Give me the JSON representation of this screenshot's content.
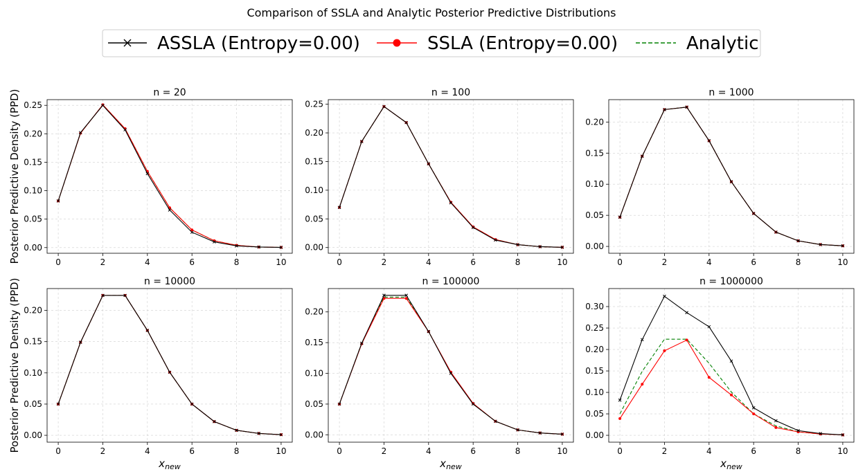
{
  "title": "Comparison of SSLA and Analytic Posterior Predictive Distributions",
  "legend": [
    {
      "label": "ASSLA (Entropy=0.00)",
      "color": "#000000",
      "marker": "x",
      "dash": "solid"
    },
    {
      "label": "SSLA (Entropy=0.00)",
      "color": "#ff0000",
      "marker": "dot",
      "dash": "solid"
    },
    {
      "label": "Analytic",
      "color": "#008000",
      "marker": "none",
      "dash": "dashed"
    }
  ],
  "ylabel": "Posterior Predictive Density (PPD)",
  "xlabel_base": "x",
  "xlabel_sub": "new",
  "chart_data": [
    {
      "type": "line",
      "title": "n = 20",
      "x": [
        0,
        1,
        2,
        3,
        4,
        5,
        6,
        7,
        8,
        9,
        10
      ],
      "xlim": [
        -0.5,
        10.5
      ],
      "ylim": [
        -0.01,
        0.26
      ],
      "xticks": [
        0,
        2,
        4,
        6,
        8,
        10
      ],
      "yticks": [
        0,
        0.05,
        0.1,
        0.15,
        0.2,
        0.25
      ],
      "tick_labels": [
        "0.00",
        "0.05",
        "0.10",
        "0.15",
        "0.20",
        "0.25"
      ],
      "grid": true,
      "series": [
        {
          "name": "ASSLA (Entropy=0.00)",
          "values": [
            0.082,
            0.202,
            0.25,
            0.207,
            0.13,
            0.066,
            0.027,
            0.01,
            0.003,
            0.001,
            0.0003
          ]
        },
        {
          "name": "SSLA (Entropy=0.00)",
          "values": [
            0.082,
            0.201,
            0.251,
            0.209,
            0.134,
            0.07,
            0.031,
            0.012,
            0.004,
            0.001,
            0.0003
          ]
        },
        {
          "name": "Analytic",
          "values": [
            0.082,
            0.201,
            0.251,
            0.209,
            0.134,
            0.07,
            0.031,
            0.012,
            0.004,
            0.001,
            0.0003
          ]
        }
      ]
    },
    {
      "type": "line",
      "title": "n = 100",
      "x": [
        0,
        1,
        2,
        3,
        4,
        5,
        6,
        7,
        8,
        9,
        10
      ],
      "xlim": [
        -0.5,
        10.5
      ],
      "ylim": [
        -0.01,
        0.258
      ],
      "xticks": [
        0,
        2,
        4,
        6,
        8,
        10
      ],
      "yticks": [
        0,
        0.05,
        0.1,
        0.15,
        0.2,
        0.25
      ],
      "tick_labels": [
        "0.00",
        "0.05",
        "0.10",
        "0.15",
        "0.20",
        "0.25"
      ],
      "grid": true,
      "series": [
        {
          "name": "ASSLA (Entropy=0.00)",
          "values": [
            0.07,
            0.185,
            0.246,
            0.218,
            0.146,
            0.078,
            0.035,
            0.013,
            0.005,
            0.0015,
            0.0004
          ]
        },
        {
          "name": "SSLA (Entropy=0.00)",
          "values": [
            0.07,
            0.185,
            0.246,
            0.218,
            0.146,
            0.079,
            0.036,
            0.014,
            0.005,
            0.0015,
            0.0004
          ]
        },
        {
          "name": "Analytic",
          "values": [
            0.07,
            0.185,
            0.246,
            0.218,
            0.146,
            0.079,
            0.036,
            0.014,
            0.005,
            0.0015,
            0.0004
          ]
        }
      ]
    },
    {
      "type": "line",
      "title": "n = 1000",
      "x": [
        0,
        1,
        2,
        3,
        4,
        5,
        6,
        7,
        8,
        9,
        10
      ],
      "xlim": [
        -0.5,
        10.5
      ],
      "ylim": [
        -0.011,
        0.236
      ],
      "xticks": [
        0,
        2,
        4,
        6,
        8,
        10
      ],
      "yticks": [
        0,
        0.05,
        0.1,
        0.15,
        0.2
      ],
      "tick_labels": [
        "0.00",
        "0.05",
        "0.10",
        "0.15",
        "0.20"
      ],
      "grid": true,
      "series": [
        {
          "name": "ASSLA (Entropy=0.00)",
          "values": [
            0.047,
            0.145,
            0.22,
            0.224,
            0.17,
            0.104,
            0.053,
            0.023,
            0.009,
            0.003,
            0.001
          ]
        },
        {
          "name": "SSLA (Entropy=0.00)",
          "values": [
            0.047,
            0.145,
            0.22,
            0.224,
            0.17,
            0.104,
            0.053,
            0.023,
            0.009,
            0.003,
            0.001
          ]
        },
        {
          "name": "Analytic",
          "values": [
            0.047,
            0.145,
            0.22,
            0.224,
            0.17,
            0.104,
            0.053,
            0.023,
            0.009,
            0.003,
            0.001
          ]
        }
      ]
    },
    {
      "type": "line",
      "title": "n = 10000",
      "x": [
        0,
        1,
        2,
        3,
        4,
        5,
        6,
        7,
        8,
        9,
        10
      ],
      "xlim": [
        -0.5,
        10.5
      ],
      "ylim": [
        -0.011,
        0.235
      ],
      "xticks": [
        0,
        2,
        4,
        6,
        8,
        10
      ],
      "yticks": [
        0,
        0.05,
        0.1,
        0.15,
        0.2
      ],
      "tick_labels": [
        "0.00",
        "0.05",
        "0.10",
        "0.15",
        "0.20"
      ],
      "grid": true,
      "series": [
        {
          "name": "ASSLA (Entropy=0.00)",
          "values": [
            0.05,
            0.149,
            0.224,
            0.224,
            0.168,
            0.101,
            0.05,
            0.022,
            0.008,
            0.003,
            0.001
          ]
        },
        {
          "name": "SSLA (Entropy=0.00)",
          "values": [
            0.05,
            0.149,
            0.224,
            0.224,
            0.168,
            0.101,
            0.05,
            0.022,
            0.008,
            0.003,
            0.001
          ]
        },
        {
          "name": "Analytic",
          "values": [
            0.05,
            0.149,
            0.224,
            0.224,
            0.168,
            0.101,
            0.05,
            0.022,
            0.008,
            0.003,
            0.001
          ]
        }
      ]
    },
    {
      "type": "line",
      "title": "n = 100000",
      "x": [
        0,
        1,
        2,
        3,
        4,
        5,
        6,
        7,
        8,
        9,
        10
      ],
      "xlim": [
        -0.5,
        10.5
      ],
      "ylim": [
        -0.012,
        0.238
      ],
      "xticks": [
        0,
        2,
        4,
        6,
        8,
        10
      ],
      "yticks": [
        0,
        0.05,
        0.1,
        0.15,
        0.2
      ],
      "tick_labels": [
        "0.00",
        "0.05",
        "0.10",
        "0.15",
        "0.20"
      ],
      "grid": true,
      "series": [
        {
          "name": "ASSLA (Entropy=0.00)",
          "values": [
            0.05,
            0.149,
            0.227,
            0.227,
            0.168,
            0.1,
            0.05,
            0.022,
            0.008,
            0.003,
            0.001
          ]
        },
        {
          "name": "SSLA (Entropy=0.00)",
          "values": [
            0.05,
            0.148,
            0.222,
            0.222,
            0.168,
            0.102,
            0.051,
            0.022,
            0.008,
            0.003,
            0.001
          ]
        },
        {
          "name": "Analytic",
          "values": [
            0.05,
            0.149,
            0.224,
            0.224,
            0.168,
            0.101,
            0.05,
            0.022,
            0.008,
            0.003,
            0.001
          ]
        }
      ]
    },
    {
      "type": "line",
      "title": "n = 1000000",
      "x": [
        0,
        1,
        2,
        3,
        4,
        5,
        6,
        7,
        8,
        9,
        10
      ],
      "xlim": [
        -0.5,
        10.5
      ],
      "ylim": [
        -0.016,
        0.342
      ],
      "xticks": [
        0,
        2,
        4,
        6,
        8,
        10
      ],
      "yticks": [
        0,
        0.05,
        0.1,
        0.15,
        0.2,
        0.25,
        0.3
      ],
      "tick_labels": [
        "0.00",
        "0.05",
        "0.10",
        "0.15",
        "0.20",
        "0.25",
        "0.30"
      ],
      "grid": true,
      "series": [
        {
          "name": "ASSLA (Entropy=0.00)",
          "values": [
            0.082,
            0.223,
            0.324,
            0.286,
            0.253,
            0.173,
            0.064,
            0.034,
            0.011,
            0.004,
            0.001
          ]
        },
        {
          "name": "SSLA (Entropy=0.00)",
          "values": [
            0.039,
            0.119,
            0.197,
            0.222,
            0.135,
            0.094,
            0.05,
            0.018,
            0.008,
            0.003,
            0.001
          ]
        },
        {
          "name": "Analytic",
          "values": [
            0.05,
            0.149,
            0.224,
            0.224,
            0.168,
            0.101,
            0.05,
            0.022,
            0.008,
            0.003,
            0.001
          ]
        }
      ]
    }
  ]
}
